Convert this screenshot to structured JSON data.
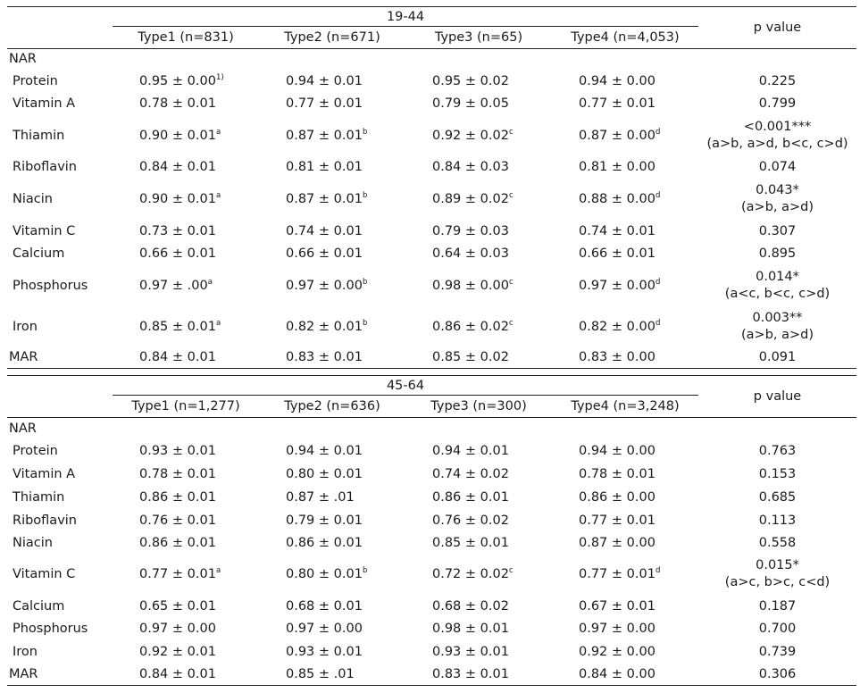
{
  "sections": [
    {
      "age_group": "19-44",
      "types": [
        "Type1 (n=831)",
        "Type2 (n=671)",
        "Type3 (n=65)",
        "Type4 (n=4,053)"
      ],
      "pvalue_header": "p value",
      "nar_label": "NAR",
      "rows": [
        {
          "label": "Protein",
          "v": [
            "0.95 ± 0.00",
            "0.94 ± 0.01",
            "0.95 ± 0.02",
            "0.94 ± 0.00"
          ],
          "s": [
            "1)",
            "",
            "",
            ""
          ],
          "p": "0.225",
          "p2": ""
        },
        {
          "label": "Vitamin A",
          "v": [
            "0.78 ± 0.01",
            "0.77 ± 0.01",
            "0.79 ± 0.05",
            "0.77 ± 0.01"
          ],
          "s": [
            "",
            "",
            "",
            ""
          ],
          "p": "0.799",
          "p2": ""
        },
        {
          "label": "Thiamin",
          "v": [
            "0.90 ± 0.01",
            "0.87 ± 0.01",
            "0.92 ± 0.02",
            "0.87 ± 0.00"
          ],
          "s": [
            "a",
            "b",
            "c",
            "d"
          ],
          "p": "<0.001***",
          "p2": "(a>b, a>d, b<c, c>d)"
        },
        {
          "label": "Riboflavin",
          "v": [
            "0.84 ± 0.01",
            "0.81 ± 0.01",
            "0.84 ± 0.03",
            "0.81 ± 0.00"
          ],
          "s": [
            "",
            "",
            "",
            ""
          ],
          "p": "0.074",
          "p2": ""
        },
        {
          "label": "Niacin",
          "v": [
            "0.90 ± 0.01",
            "0.87 ± 0.01",
            "0.89 ± 0.02",
            "0.88 ± 0.00"
          ],
          "s": [
            "a",
            "b",
            "c",
            "d"
          ],
          "p": "0.043*",
          "p2": "(a>b, a>d)"
        },
        {
          "label": "Vitamin C",
          "v": [
            "0.73 ± 0.01",
            "0.74 ± 0.01",
            "0.79 ± 0.03",
            "0.74 ± 0.01"
          ],
          "s": [
            "",
            "",
            "",
            ""
          ],
          "p": "0.307",
          "p2": ""
        },
        {
          "label": "Calcium",
          "v": [
            "0.66 ± 0.01",
            "0.66 ± 0.01",
            "0.64 ± 0.03",
            "0.66 ± 0.01"
          ],
          "s": [
            "",
            "",
            "",
            ""
          ],
          "p": "0.895",
          "p2": ""
        },
        {
          "label": "Phosphorus",
          "v": [
            "0.97 ± .00",
            "0.97 ± 0.00",
            "0.98 ± 0.00",
            "0.97 ± 0.00"
          ],
          "s": [
            "a",
            "b",
            "c",
            "d"
          ],
          "p": "0.014*",
          "p2": "(a<c, b<c, c>d)"
        },
        {
          "label": "Iron",
          "v": [
            "0.85 ± 0.01",
            "0.82 ± 0.01",
            "0.86 ± 0.02",
            "0.82 ± 0.00"
          ],
          "s": [
            "a",
            "b",
            "c",
            "d"
          ],
          "p": "0.003**",
          "p2": "(a>b, a>d)"
        }
      ],
      "mar": {
        "label": "MAR",
        "v": [
          "0.84 ± 0.01",
          "0.83 ± 0.01",
          "0.85 ± 0.02",
          "0.83 ± 0.00"
        ],
        "p": "0.091"
      }
    },
    {
      "age_group": "45-64",
      "types": [
        "Type1 (n=1,277)",
        "Type2 (n=636)",
        "Type3 (n=300)",
        "Type4 (n=3,248)"
      ],
      "pvalue_header": "p value",
      "nar_label": "NAR",
      "rows": [
        {
          "label": "Protein",
          "v": [
            "0.93 ± 0.01",
            "0.94 ± 0.01",
            "0.94 ± 0.01",
            "0.94 ± 0.00"
          ],
          "s": [
            "",
            "",
            "",
            ""
          ],
          "p": "0.763",
          "p2": ""
        },
        {
          "label": "Vitamin A",
          "v": [
            "0.78 ± 0.01",
            "0.80 ± 0.01",
            "0.74 ± 0.02",
            "0.78 ± 0.01"
          ],
          "s": [
            "",
            "",
            "",
            ""
          ],
          "p": "0.153",
          "p2": ""
        },
        {
          "label": "Thiamin",
          "v": [
            "0.86 ± 0.01",
            "0.87 ± .01",
            "0.86 ± 0.01",
            "0.86 ± 0.00"
          ],
          "s": [
            "",
            "",
            "",
            ""
          ],
          "p": "0.685",
          "p2": ""
        },
        {
          "label": "Riboflavin",
          "v": [
            "0.76 ± 0.01",
            "0.79 ± 0.01",
            "0.76 ± 0.02",
            "0.77 ± 0.01"
          ],
          "s": [
            "",
            "",
            "",
            ""
          ],
          "p": "0.113",
          "p2": ""
        },
        {
          "label": "Niacin",
          "v": [
            "0.86 ± 0.01",
            "0.86 ± 0.01",
            "0.85 ± 0.01",
            "0.87 ± 0.00"
          ],
          "s": [
            "",
            "",
            "",
            ""
          ],
          "p": "0.558",
          "p2": ""
        },
        {
          "label": "Vitamin C",
          "v": [
            "0.77 ± 0.01",
            "0.80 ± 0.01",
            "0.72 ± 0.02",
            "0.77 ± 0.01"
          ],
          "s": [
            "a",
            "b",
            "c",
            "d"
          ],
          "p": "0.015*",
          "p2": "(a>c, b>c, c<d)"
        },
        {
          "label": "Calcium",
          "v": [
            "0.65 ± 0.01",
            "0.68 ± 0.01",
            "0.68 ± 0.02",
            "0.67 ± 0.01"
          ],
          "s": [
            "",
            "",
            "",
            ""
          ],
          "p": "0.187",
          "p2": ""
        },
        {
          "label": "Phosphorus",
          "v": [
            "0.97 ± 0.00",
            "0.97 ± 0.00",
            "0.98 ± 0.01",
            "0.97 ± 0.00"
          ],
          "s": [
            "",
            "",
            "",
            ""
          ],
          "p": "0.700",
          "p2": ""
        },
        {
          "label": "Iron",
          "v": [
            "0.92 ± 0.01",
            "0.93 ± 0.01",
            "0.93 ± 0.01",
            "0.92 ± 0.00"
          ],
          "s": [
            "",
            "",
            "",
            ""
          ],
          "p": "0.739",
          "p2": ""
        }
      ],
      "mar": {
        "label": "MAR",
        "v": [
          "0.84 ± 0.01",
          "0.85 ± .01",
          "0.83 ± 0.01",
          "0.84 ± 0.00"
        ],
        "p": "0.306"
      }
    }
  ]
}
